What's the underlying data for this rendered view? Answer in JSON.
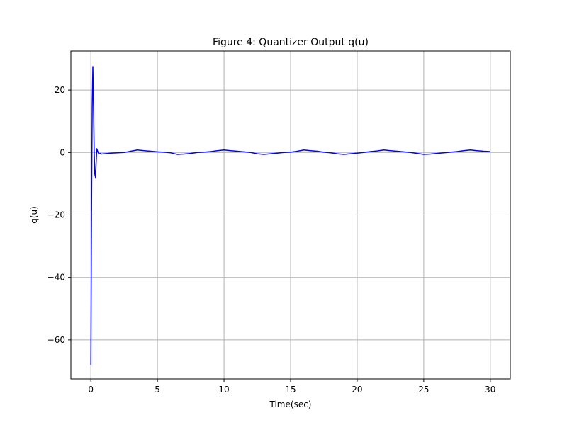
{
  "chart_data": {
    "type": "line",
    "title": "Figure 4: Quantizer Output q(u)",
    "xlabel": "Time(sec)",
    "ylabel": "q(u)",
    "xlim": [
      -1.5,
      31.5
    ],
    "ylim": [
      -72.5,
      32.5
    ],
    "xticks": [
      0,
      5,
      10,
      15,
      20,
      25,
      30
    ],
    "yticks": [
      -60,
      -40,
      -20,
      0,
      20
    ],
    "grid": true,
    "line_color": "#0000ff",
    "series": [
      {
        "x": [
          0,
          0.05,
          0.1,
          0.15,
          0.2,
          0.25,
          0.3,
          0.35,
          0.4,
          0.45,
          0.5,
          0.6,
          0.7,
          0.8,
          1.0,
          1.5,
          2.0,
          2.5,
          3.0,
          3.5,
          4.0,
          4.5,
          5.0,
          5.5,
          6.0,
          6.5,
          7.0,
          7.5,
          8.0,
          8.5,
          9.0,
          9.5,
          10.0,
          10.5,
          11.0,
          11.5,
          12.0,
          12.5,
          13.0,
          13.5,
          14.0,
          14.5,
          15.0,
          15.5,
          16.0,
          16.5,
          17.0,
          17.5,
          18.0,
          18.5,
          19.0,
          19.5,
          20.0,
          20.5,
          21.0,
          21.5,
          22.0,
          22.5,
          23.0,
          23.5,
          24.0,
          24.5,
          25.0,
          25.5,
          26.0,
          26.5,
          27.0,
          27.5,
          28.0,
          28.5,
          29.0,
          29.5,
          30.0
        ],
        "y": [
          -68,
          -20,
          15,
          27.5,
          15,
          0,
          -7,
          -8,
          -3,
          1.2,
          0.5,
          -0.5,
          -0.3,
          -0.5,
          -0.4,
          -0.2,
          -0.1,
          0,
          0.4,
          0.8,
          0.6,
          0.4,
          0.2,
          0.1,
          -0.1,
          -0.6,
          -0.5,
          -0.3,
          0,
          0.1,
          0.3,
          0.6,
          0.8,
          0.6,
          0.4,
          0.2,
          0,
          -0.4,
          -0.6,
          -0.4,
          -0.2,
          0,
          0.1,
          0.4,
          0.8,
          0.6,
          0.4,
          0.1,
          -0.1,
          -0.4,
          -0.6,
          -0.4,
          -0.2,
          0,
          0.3,
          0.5,
          0.8,
          0.6,
          0.4,
          0.2,
          0,
          -0.3,
          -0.6,
          -0.5,
          -0.3,
          -0.1,
          0.1,
          0.3,
          0.6,
          0.8,
          0.6,
          0.4,
          0.3
        ]
      }
    ]
  }
}
